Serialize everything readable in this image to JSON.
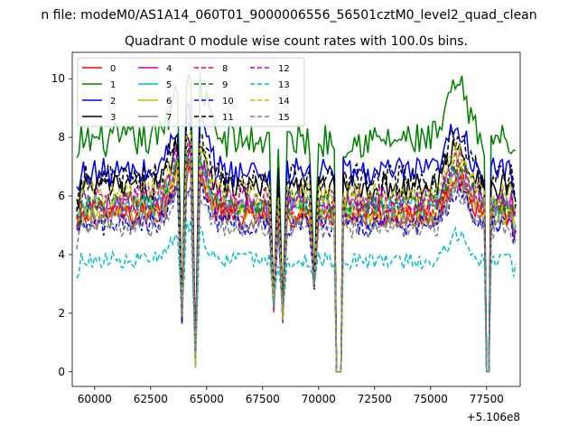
{
  "chart_data": {
    "type": "line",
    "suptitle": "n file: modeM0/AS1A14_060T01_9000006556_56501cztM0_level2_quad_clean",
    "title": "Quadrant 0 module wise count rates with 100.0s bins.",
    "xlabel": "",
    "ylabel": "",
    "x_offset_label": "+5.106e8",
    "xlim": [
      59000,
      79000
    ],
    "ylim": [
      -0.5,
      10.9
    ],
    "xticks": [
      60000,
      62500,
      65000,
      67500,
      70000,
      72500,
      75000,
      77500
    ],
    "xtick_labels": [
      "60000",
      "62500",
      "65000",
      "67500",
      "70000",
      "72500",
      "75000",
      "77500"
    ],
    "yticks": [
      0,
      2,
      4,
      6,
      8,
      10
    ],
    "ytick_labels": [
      "0",
      "2",
      "4",
      "6",
      "8",
      "10"
    ],
    "grid": false,
    "legend_position": "top-left",
    "legend_columns": 4,
    "x_range": [
      59200,
      78800
    ],
    "x_step": 100,
    "gaps": [
      [
        70750,
        71000
      ],
      [
        77450,
        77600
      ]
    ],
    "dips": [
      [
        63900,
        1.9
      ],
      [
        64500,
        0.4
      ],
      [
        68000,
        2.3
      ],
      [
        68400,
        1.9
      ],
      [
        69800,
        3.0
      ]
    ],
    "series": [
      {
        "name": "0",
        "color": "#ff0000",
        "dash": false,
        "base": 5.3
      },
      {
        "name": "1",
        "color": "#008000",
        "dash": false,
        "base": 7.9
      },
      {
        "name": "2",
        "color": "#0000ff",
        "dash": false,
        "base": 6.8
      },
      {
        "name": "3",
        "color": "#000000",
        "dash": false,
        "base": 6.3
      },
      {
        "name": "4",
        "color": "#bf00bf",
        "dash": false,
        "base": 5.7
      },
      {
        "name": "5",
        "color": "#00bfbf",
        "dash": false,
        "base": 5.6
      },
      {
        "name": "6",
        "color": "#bfbf00",
        "dash": false,
        "base": 5.4
      },
      {
        "name": "7",
        "color": "#808080",
        "dash": false,
        "base": 5.2
      },
      {
        "name": "8",
        "color": "#ff0000",
        "dash": true,
        "base": 5.5
      },
      {
        "name": "9",
        "color": "#008000",
        "dash": true,
        "base": 5.8
      },
      {
        "name": "10",
        "color": "#0000ff",
        "dash": true,
        "base": 5.0
      },
      {
        "name": "11",
        "color": "#000000",
        "dash": true,
        "base": 6.6
      },
      {
        "name": "12",
        "color": "#bf00bf",
        "dash": true,
        "base": 5.9
      },
      {
        "name": "13",
        "color": "#00bfbf",
        "dash": true,
        "base": 3.8
      },
      {
        "name": "14",
        "color": "#bfbf00",
        "dash": true,
        "base": 6.1
      },
      {
        "name": "15",
        "color": "#808080",
        "dash": true,
        "base": 4.9
      }
    ]
  }
}
